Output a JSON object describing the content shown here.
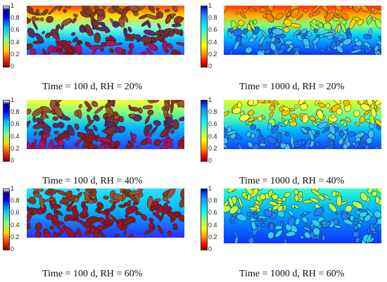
{
  "figure": {
    "colorbar_ticks_left": [
      "1",
      "0.8",
      "0.6",
      "0.4",
      "0.2",
      "0"
    ],
    "colorbar_ticks_right": [
      "1",
      "0.8",
      "0.6",
      "0.4",
      "0.2",
      "0"
    ],
    "colormap_left": [
      "#ffffff",
      "#00008b",
      "#0000ff",
      "#00bfff",
      "#7fff7f",
      "#ffd700",
      "#ff4500",
      "#8b0000"
    ],
    "colormap_right": [
      "#8b0000",
      "#ff0000",
      "#ff8c00",
      "#ffff00",
      "#7fff7f",
      "#00ffff",
      "#1e90ff",
      "#0000cd"
    ],
    "panels": [
      {
        "caption": "Time = 100 d, RH = 20%",
        "colorbar": "left"
      },
      {
        "caption": "Time = 1000 d, RH = 20%",
        "colorbar": "right"
      },
      {
        "caption": "Time = 100 d, RH = 40%",
        "colorbar": "left"
      },
      {
        "caption": "Time = 1000 d, RH = 40%",
        "colorbar": "right"
      },
      {
        "caption": "Time = 100 d, RH = 60%",
        "colorbar": "left"
      },
      {
        "caption": "Time = 1000 d, RH = 60%",
        "colorbar": "right"
      }
    ]
  }
}
